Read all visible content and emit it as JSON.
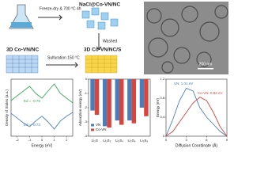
{
  "scheme": {
    "step_1": "Freeze-dry & 700 °C 4h",
    "product_1": "NaCl@Co-VN/NC",
    "step_2": "Washed",
    "product_2": "3D Co-VN/NC",
    "step_3": "Sulfuration 150 °C",
    "product_3": "3D Co-VN/NC/S"
  },
  "tem": {
    "scale_bar": "200 nm"
  },
  "chart_data": [
    {
      "type": "line",
      "xlabel": "Energy (eV)",
      "ylabel": "Density of States (a.u.)",
      "x": [
        -2.5,
        -2,
        -1.5,
        -1,
        -0.5,
        0,
        0.5,
        1,
        1.5,
        2,
        2.5
      ],
      "xlim": [
        -2.5,
        2.5
      ],
      "xticks": [
        -2,
        -1,
        0,
        1,
        2
      ],
      "ylim": [
        -6,
        6
      ],
      "annotations": [
        "Ed = -0.75",
        "Ed = -0.73"
      ],
      "series": [
        {
          "color": "#3aa655",
          "values": [
            1.5,
            2.5,
            3.5,
            4.5,
            3,
            2,
            3.5,
            5,
            3,
            2,
            1
          ]
        },
        {
          "color": "#4a7ebb",
          "values": [
            -1.2,
            -2.2,
            -3.2,
            -4,
            -2.8,
            -1.8,
            -3,
            -4.5,
            -2.8,
            -1.8,
            -1
          ]
        }
      ]
    },
    {
      "type": "bar",
      "ylabel": "Adsorption energy (eV)",
      "categories": [
        "Li₂S",
        "Li₂S₂",
        "Li₂S₄",
        "Li₂S₆",
        "Li₂S₈"
      ],
      "ylim": [
        -4,
        0
      ],
      "yticks": [
        -4,
        -3,
        -2,
        -1,
        0
      ],
      "series": [
        {
          "name": "VN",
          "color": "#4a7ebb",
          "values": [
            -2.2,
            -3.3,
            -2.9,
            -2.9,
            -2.0
          ]
        },
        {
          "name": "Co-VN",
          "color": "#d9453d",
          "values": [
            -2.5,
            -3.4,
            -3.2,
            -3.1,
            -2.6
          ]
        }
      ]
    },
    {
      "type": "line",
      "xlabel": "Diffusion Coordinate (Å)",
      "ylabel": "Energy (eV)",
      "x": [
        0,
        1,
        2,
        3,
        4,
        5,
        6,
        7,
        8,
        9
      ],
      "xlim": [
        0,
        9
      ],
      "xticks": [
        0,
        3,
        6,
        9
      ],
      "ylim": [
        0,
        1.2
      ],
      "yticks": [
        0,
        0.4,
        0.8,
        1.2
      ],
      "annotations": [
        "VN: 1.01 eV",
        "Co-VN: 0.82 eV"
      ],
      "series": [
        {
          "color": "#4a7ebb",
          "values": [
            0,
            0.35,
            0.75,
            1.01,
            0.95,
            0.6,
            0.4,
            0.25,
            0.1,
            0
          ]
        },
        {
          "color": "#d9453d",
          "values": [
            0,
            0.1,
            0.3,
            0.5,
            0.7,
            0.82,
            0.75,
            0.5,
            0.2,
            0
          ]
        }
      ]
    }
  ]
}
